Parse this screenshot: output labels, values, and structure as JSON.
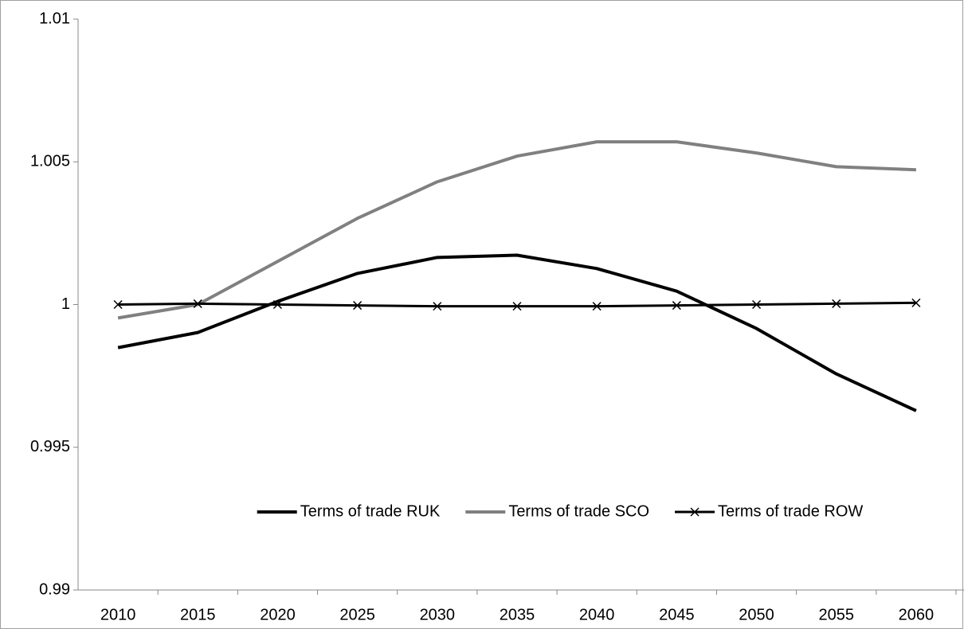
{
  "chart_data": {
    "type": "line",
    "categories": [
      "2010",
      "2015",
      "2020",
      "2025",
      "2030",
      "2035",
      "2040",
      "2045",
      "2050",
      "2055",
      "2060"
    ],
    "series": [
      {
        "name": "Terms of trade RUK",
        "color": "#000000",
        "marker": "none",
        "values": [
          0.99849,
          0.99902,
          1.00011,
          1.00109,
          1.00165,
          1.00173,
          1.00126,
          1.00047,
          0.99916,
          0.99757,
          0.99628
        ]
      },
      {
        "name": "Terms of trade SCO",
        "color": "#808080",
        "marker": "none",
        "values": [
          0.99953,
          1.0,
          1.00151,
          1.00302,
          1.0043,
          1.0052,
          1.0057,
          1.0057,
          1.00531,
          1.00483,
          1.00472
        ]
      },
      {
        "name": "Terms of trade ROW",
        "color": "#000000",
        "marker": "x",
        "values": [
          1.0,
          1.00003,
          1.0,
          0.99997,
          0.99994,
          0.99994,
          0.99994,
          0.99997,
          1.0,
          1.00003,
          1.00006
        ]
      }
    ],
    "ylim": [
      0.99,
      1.01
    ],
    "yticks": [
      0.99,
      0.995,
      1,
      1.005,
      1.01
    ],
    "grid": false,
    "legend": "bottom"
  }
}
